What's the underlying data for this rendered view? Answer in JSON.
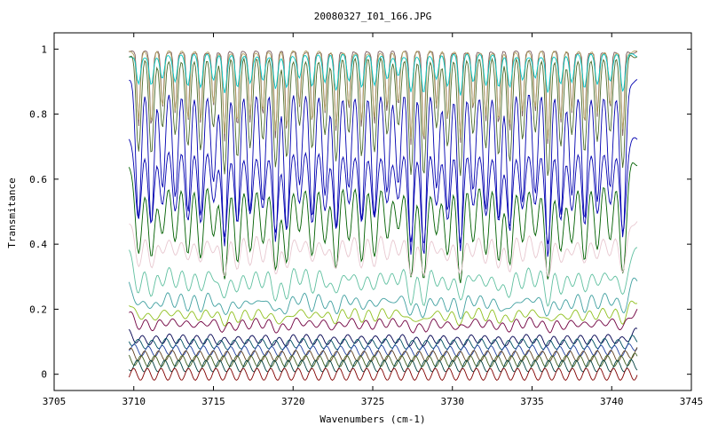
{
  "chart_data": {
    "type": "line",
    "title": "20080327_I01_166.JPG",
    "xlabel": "Wavenumbers (cm-1)",
    "ylabel": "Transmitance",
    "xlim": [
      3705,
      3745
    ],
    "ylim": [
      -0.05,
      1.05
    ],
    "xticks": [
      3705,
      3710,
      3715,
      3720,
      3725,
      3730,
      3735,
      3740,
      3745
    ],
    "yticks": [
      0,
      0.2,
      0.4,
      0.6,
      0.8,
      1
    ],
    "ytick_labels": [
      "0",
      "0.2",
      "0.4",
      "0.6",
      "0.8",
      "1"
    ],
    "grid": false,
    "legend": "none",
    "x_range_of_data": [
      3709.7,
      3741.6
    ],
    "line_centers": [
      3710.3,
      3711.1,
      3711.8,
      3712.6,
      3713.4,
      3714.2,
      3715.0,
      3715.7,
      3716.5,
      3717.3,
      3718.1,
      3718.9,
      3719.6,
      3720.4,
      3721.2,
      3722.0,
      3722.7,
      3723.5,
      3724.3,
      3725.1,
      3725.9,
      3726.6,
      3727.4,
      3728.2,
      3729.0,
      3729.7,
      3730.5,
      3731.3,
      3732.1,
      3732.9,
      3733.6,
      3734.4,
      3735.2,
      3736.0,
      3736.8,
      3737.5,
      3738.3,
      3739.1,
      3739.9,
      3740.7
    ],
    "series_summary": [
      {
        "color": "#7a5a5a",
        "baseline": 0.99,
        "min": 0.7
      },
      {
        "color": "#b0a060",
        "baseline": 0.99,
        "min": 0.72
      },
      {
        "color": "#00c8c8",
        "baseline": 0.98,
        "min": 0.86
      },
      {
        "color": "#4a6a2a",
        "baseline": 0.98,
        "min": 0.6
      },
      {
        "color": "#0000b0",
        "baseline": 0.9,
        "min": 0.36
      },
      {
        "color": "#0000b0",
        "baseline": 0.72,
        "min": 0.4
      },
      {
        "color": "#006000",
        "baseline": 0.65,
        "min": 0.28
      },
      {
        "color": "#e8c8d0",
        "baseline": 0.47,
        "min": 0.3
      },
      {
        "color": "#60c0a0",
        "baseline": 0.38,
        "min": 0.22
      },
      {
        "color": "#40a0a0",
        "baseline": 0.29,
        "min": 0.18
      },
      {
        "color": "#90c020",
        "baseline": 0.23,
        "min": 0.16
      },
      {
        "color": "#700040",
        "baseline": 0.195,
        "min": 0.14
      },
      {
        "color": "#000050",
        "baseline": 0.13,
        "min": 0.1
      },
      {
        "color": "#005060",
        "baseline": 0.11,
        "min": 0.09
      },
      {
        "color": "#2040a0",
        "baseline": 0.09,
        "min": 0.07
      },
      {
        "color": "#604020",
        "baseline": 0.07,
        "min": 0.055
      },
      {
        "color": "#406020",
        "baseline": 0.05,
        "min": 0.04
      },
      {
        "color": "#004040",
        "baseline": 0.03,
        "min": 0.025
      },
      {
        "color": "#800000",
        "baseline": 0.0,
        "min": 0.0
      }
    ]
  }
}
